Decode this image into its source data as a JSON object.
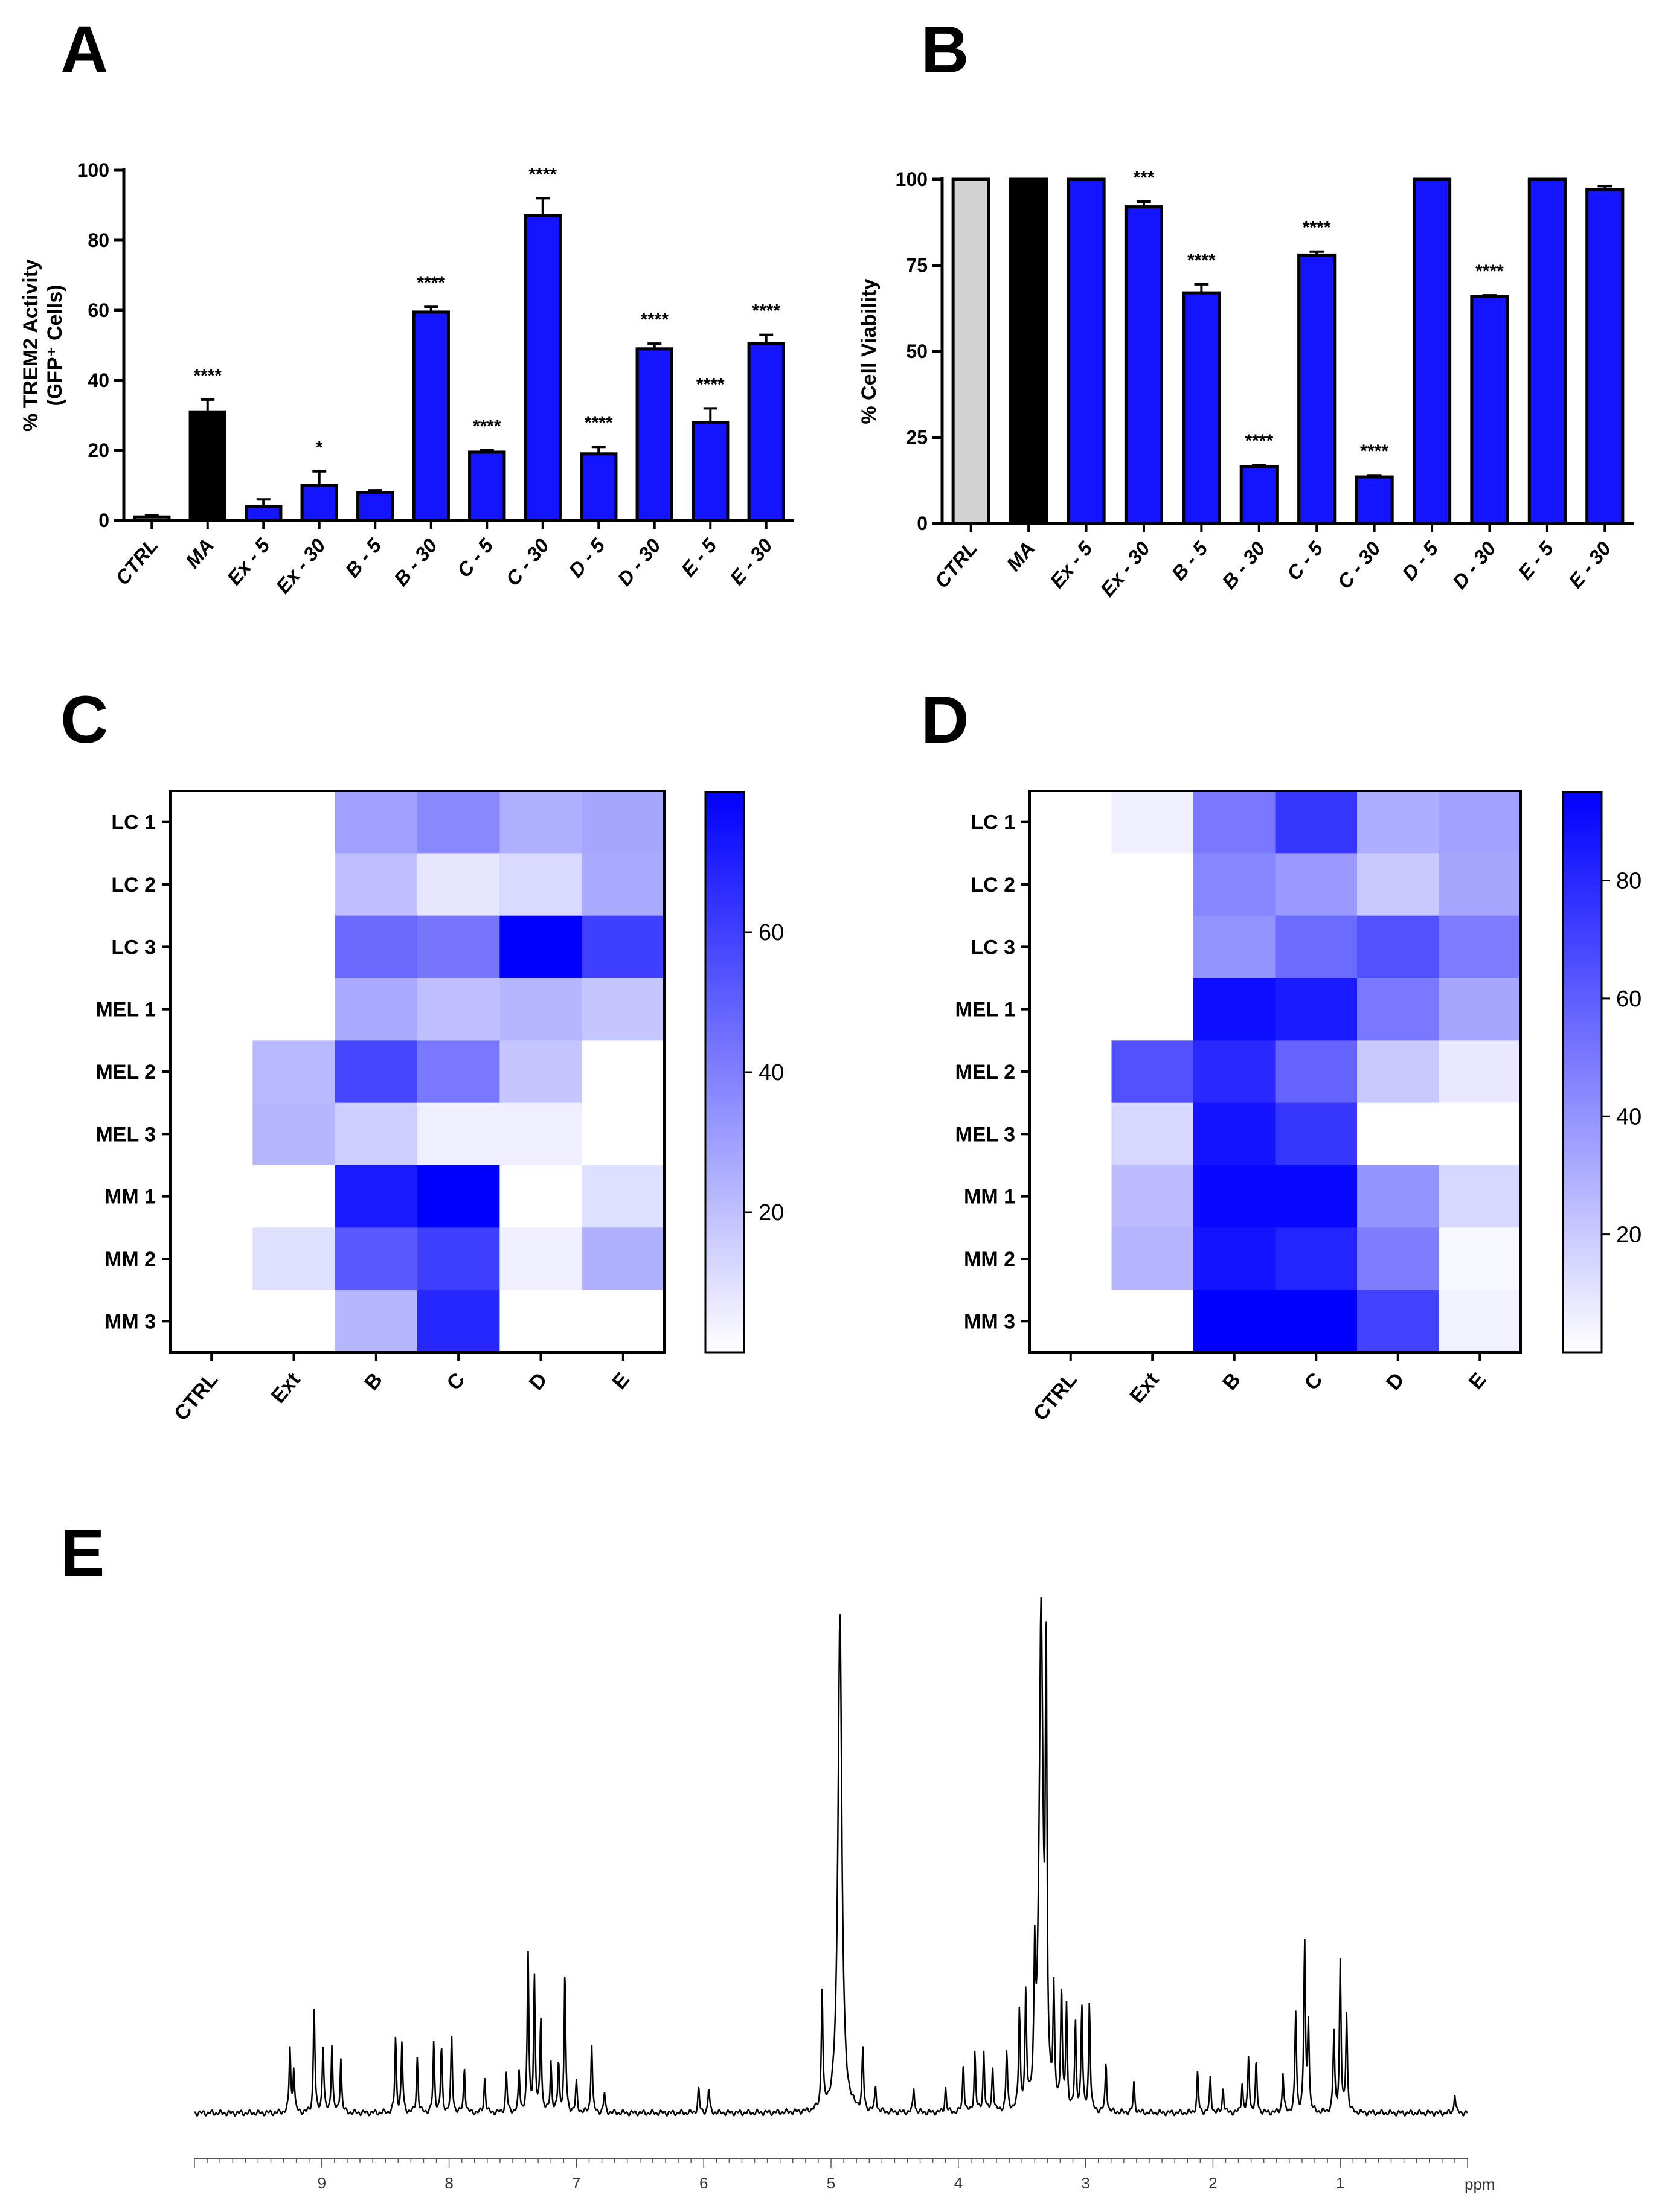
{
  "figure": {
    "panel_letters": [
      "A",
      "B",
      "C",
      "D",
      "E"
    ]
  },
  "colors": {
    "blue": "#1414ff",
    "black": "#000000",
    "gray": "#d3d3d3",
    "heat_low": "#ffffff",
    "heat_high": "#0000ff"
  },
  "chart_data": [
    {
      "panel": "A",
      "type": "bar",
      "ylabel_line1": "% TREM2 Activity",
      "ylabel_line2": "(GFP⁺ Cells)",
      "ylim": [
        0,
        100
      ],
      "yticks": [
        0,
        20,
        40,
        60,
        80,
        100
      ],
      "categories": [
        "CTRL",
        "MA",
        "Ex - 5",
        "Ex - 30",
        "B - 5",
        "B - 30",
        "C - 5",
        "C - 30",
        "D - 5",
        "D - 30",
        "E - 5",
        "E - 30"
      ],
      "values": [
        1,
        31,
        4,
        10,
        8,
        59.5,
        19.5,
        87,
        19,
        49,
        28,
        50.5
      ],
      "errors": [
        0.5,
        3.5,
        2,
        4,
        0.6,
        1.5,
        0.5,
        5,
        2,
        1.5,
        4,
        2.5
      ],
      "bar_colors": [
        "gray",
        "black",
        "blue",
        "blue",
        "blue",
        "blue",
        "blue",
        "blue",
        "blue",
        "blue",
        "blue",
        "blue"
      ],
      "significance": [
        "",
        "****",
        "",
        "*",
        "",
        "****",
        "****",
        "****",
        "****",
        "****",
        "****",
        "****"
      ]
    },
    {
      "panel": "B",
      "type": "bar",
      "ylabel_line1": "% Cell Viability",
      "ylim": [
        0,
        100
      ],
      "yticks": [
        0,
        25,
        50,
        75,
        100
      ],
      "categories": [
        "CTRL",
        "MA",
        "Ex - 5",
        "Ex - 30",
        "B - 5",
        "B - 30",
        "C - 5",
        "C - 30",
        "D - 5",
        "D - 30",
        "E - 5",
        "E - 30"
      ],
      "values": [
        100,
        100,
        100,
        92,
        67,
        16.5,
        78,
        13.5,
        100,
        66,
        100,
        97
      ],
      "errors": [
        0,
        0,
        0,
        1.5,
        2.5,
        0.5,
        1,
        0.5,
        0,
        0.3,
        0,
        1
      ],
      "bar_colors": [
        "gray",
        "black",
        "blue",
        "blue",
        "blue",
        "blue",
        "blue",
        "blue",
        "blue",
        "blue",
        "blue",
        "blue"
      ],
      "significance": [
        "",
        "",
        "",
        "***",
        "****",
        "****",
        "****",
        "****",
        "",
        "****",
        "",
        ""
      ]
    },
    {
      "panel": "C",
      "type": "heatmap",
      "rows": [
        "LC 1",
        "LC 2",
        "LC 3",
        "MEL 1",
        "MEL 2",
        "MEL 3",
        "MM 1",
        "MM 2",
        "MM 3"
      ],
      "columns": [
        "CTRL",
        "Ext",
        "B",
        "C",
        "D",
        "E"
      ],
      "values": [
        [
          0,
          0,
          30,
          37,
          25,
          28
        ],
        [
          0,
          0,
          20,
          8,
          12,
          27
        ],
        [
          0,
          0,
          47,
          43,
          80,
          60
        ],
        [
          0,
          0,
          27,
          20,
          23,
          18
        ],
        [
          0,
          22,
          58,
          42,
          18,
          0
        ],
        [
          0,
          23,
          15,
          5,
          5,
          0
        ],
        [
          0,
          0,
          72,
          80,
          0,
          10
        ],
        [
          0,
          10,
          52,
          60,
          5,
          25
        ],
        [
          0,
          0,
          23,
          68,
          0,
          0
        ]
      ],
      "colorbar_range": [
        0,
        80
      ],
      "colorbar_ticks": [
        20,
        40,
        60
      ]
    },
    {
      "panel": "D",
      "type": "heatmap",
      "rows": [
        "LC 1",
        "LC 2",
        "LC 3",
        "MEL 1",
        "MEL 2",
        "MEL 3",
        "MM 1",
        "MM 2",
        "MM 3"
      ],
      "columns": [
        "CTRL",
        "Ext",
        "B",
        "C",
        "D",
        "E"
      ],
      "values": [
        [
          0,
          6,
          50,
          75,
          30,
          35
        ],
        [
          0,
          0,
          45,
          38,
          20,
          33
        ],
        [
          0,
          0,
          40,
          55,
          65,
          48
        ],
        [
          0,
          0,
          90,
          85,
          50,
          33
        ],
        [
          0,
          65,
          80,
          57,
          20,
          8
        ],
        [
          0,
          15,
          88,
          75,
          0,
          0
        ],
        [
          0,
          25,
          92,
          92,
          40,
          15
        ],
        [
          0,
          28,
          88,
          82,
          48,
          3
        ],
        [
          0,
          0,
          95,
          98,
          70,
          5
        ]
      ],
      "colorbar_range": [
        0,
        95
      ],
      "colorbar_ticks": [
        20,
        40,
        60,
        80
      ]
    },
    {
      "panel": "E",
      "type": "line",
      "xlabel": "ppm",
      "x_range": [
        10,
        0
      ],
      "xticks": [
        9,
        8,
        7,
        6,
        5,
        4,
        3,
        2,
        1
      ],
      "baseline": 0.03,
      "peaks": [
        [
          9.25,
          0.13
        ],
        [
          9.22,
          0.09
        ],
        [
          9.06,
          0.22
        ],
        [
          8.99,
          0.14
        ],
        [
          8.92,
          0.14
        ],
        [
          8.85,
          0.11
        ],
        [
          8.42,
          0.15
        ],
        [
          8.37,
          0.14
        ],
        [
          8.25,
          0.11
        ],
        [
          8.12,
          0.14
        ],
        [
          8.06,
          0.13
        ],
        [
          7.98,
          0.15
        ],
        [
          7.88,
          0.09
        ],
        [
          7.72,
          0.07
        ],
        [
          7.55,
          0.08
        ],
        [
          7.45,
          0.08
        ],
        [
          7.38,
          0.32
        ],
        [
          7.33,
          0.27
        ],
        [
          7.28,
          0.19
        ],
        [
          7.2,
          0.1
        ],
        [
          7.14,
          0.1
        ],
        [
          7.09,
          0.28
        ],
        [
          7.0,
          0.06
        ],
        [
          6.88,
          0.14
        ],
        [
          6.78,
          0.04
        ],
        [
          6.04,
          0.05
        ],
        [
          5.96,
          0.05
        ],
        [
          5.07,
          0.24
        ],
        [
          4.93,
          1.0
        ],
        [
          4.75,
          0.12
        ],
        [
          4.65,
          0.05
        ],
        [
          4.35,
          0.05
        ],
        [
          4.1,
          0.05
        ],
        [
          3.96,
          0.1
        ],
        [
          3.87,
          0.12
        ],
        [
          3.8,
          0.12
        ],
        [
          3.73,
          0.09
        ],
        [
          3.62,
          0.12
        ],
        [
          3.52,
          0.2
        ],
        [
          3.47,
          0.22
        ],
        [
          3.4,
          0.25
        ],
        [
          3.35,
          1.0
        ],
        [
          3.31,
          0.86
        ],
        [
          3.25,
          0.22
        ],
        [
          3.19,
          0.24
        ],
        [
          3.15,
          0.2
        ],
        [
          3.08,
          0.17
        ],
        [
          3.03,
          0.21
        ],
        [
          2.97,
          0.22
        ],
        [
          2.84,
          0.1
        ],
        [
          2.62,
          0.06
        ],
        [
          2.12,
          0.08
        ],
        [
          2.02,
          0.07
        ],
        [
          1.92,
          0.05
        ],
        [
          1.77,
          0.06
        ],
        [
          1.72,
          0.11
        ],
        [
          1.66,
          0.1
        ],
        [
          1.45,
          0.08
        ],
        [
          1.35,
          0.2
        ],
        [
          1.28,
          0.34
        ],
        [
          1.25,
          0.18
        ],
        [
          1.05,
          0.16
        ],
        [
          1.0,
          0.3
        ],
        [
          0.95,
          0.2
        ],
        [
          0.1,
          0.04
        ]
      ]
    }
  ]
}
